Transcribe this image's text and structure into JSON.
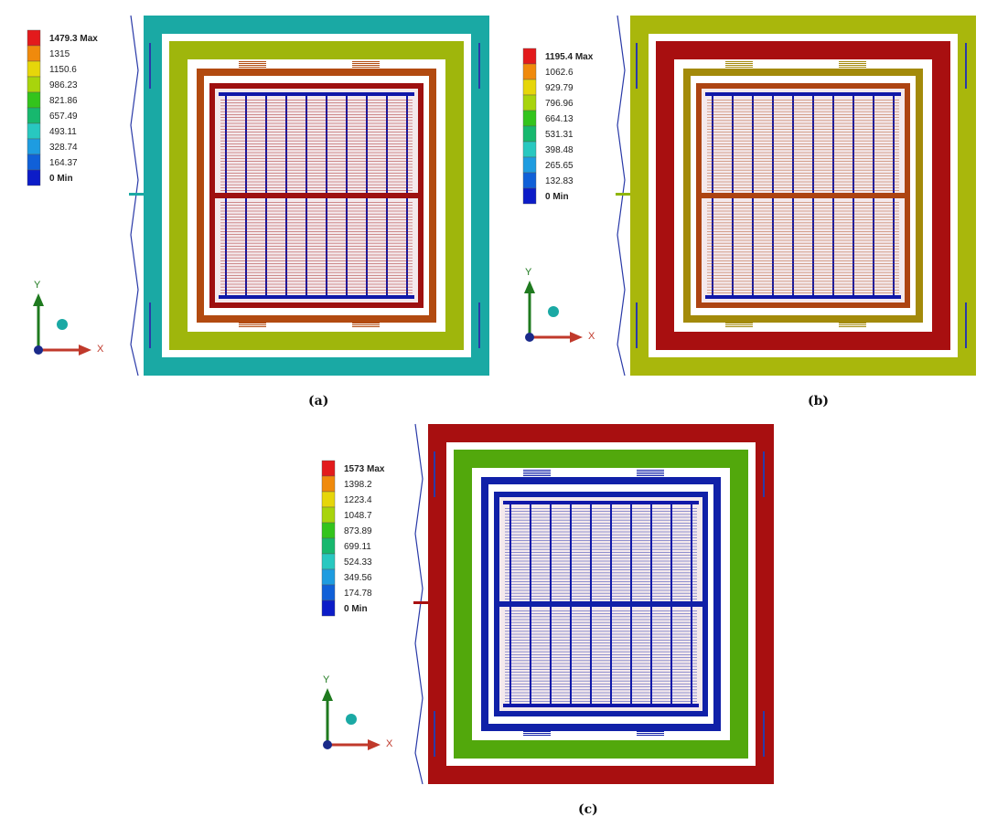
{
  "panels": [
    {
      "caption": "(a)",
      "legend": [
        "1479.3 Max",
        "1315",
        "1150.6",
        "986.23",
        "821.86",
        "657.49",
        "493.11",
        "328.74",
        "164.37",
        "0 Min"
      ],
      "ring_colors": {
        "outer_frame": "#1aa9a4",
        "middle_frame": "#9fb60c",
        "inner_frame": "#b24a10",
        "proof_mass": "#9e1010",
        "comb_beams": "#1018a8",
        "spring_link": "#1aa9a4"
      }
    },
    {
      "caption": "(b)",
      "legend": [
        "1195.4 Max",
        "1062.6",
        "929.79",
        "796.96",
        "664.13",
        "531.31",
        "398.48",
        "265.65",
        "132.83",
        "0 Min"
      ],
      "ring_colors": {
        "outer_frame": "#a9b70c",
        "middle_frame": "#a80f10",
        "inner_frame": "#a38a0a",
        "proof_mass": "#ad4412",
        "comb_beams": "#1018a8",
        "spring_link": "#8fb50c"
      }
    },
    {
      "caption": "(c)",
      "legend": [
        "1573 Max",
        "1398.2",
        "1223.4",
        "1048.7",
        "873.89",
        "699.11",
        "524.33",
        "349.56",
        "174.78",
        "0 Min"
      ],
      "ring_colors": {
        "outer_frame": "#a80f10",
        "middle_frame": "#52a80c",
        "inner_frame": "#1020a8",
        "proof_mass": "#1020a8",
        "comb_beams": "#1018a8",
        "spring_link": "#a80f10"
      }
    }
  ],
  "legend_swatches": [
    "#e31a1c",
    "#f08a0c",
    "#e6d60a",
    "#a8d40c",
    "#33c41c",
    "#17b86e",
    "#28c8c0",
    "#1e9ce0",
    "#1060d8",
    "#0c1cc8"
  ],
  "axis_triad": {
    "y_label": "Y",
    "x_label": "X",
    "y_color": "#1f7a1f",
    "x_color": "#c0392b",
    "origin_color": "#1a2a8a",
    "ball_color": "#1aa9a4"
  }
}
